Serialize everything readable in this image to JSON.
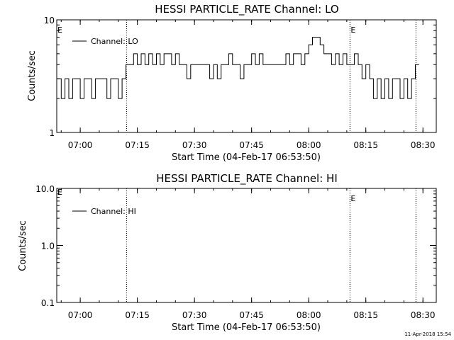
{
  "footer_date": "11-Apr-2018 15:54",
  "chart_data": [
    {
      "type": "line",
      "title": "HESSI PARTICLE_RATE Channel: LO",
      "xlabel": "Start Time (04-Feb-17 06:53:50)",
      "ylabel": "Counts/sec",
      "yscale": "log",
      "ylim": [
        1,
        10
      ],
      "ytick_labels": [
        "1",
        "10"
      ],
      "xlim": [
        "06:53:50",
        "08:33:30"
      ],
      "xtick_labels": [
        "07:00",
        "07:15",
        "07:30",
        "07:45",
        "08:00",
        "08:15",
        "08:30"
      ],
      "legend": {
        "entries": [
          "Channel: LO"
        ],
        "placement": "top-left"
      },
      "grid": false,
      "markers": [
        {
          "x": "07:12:10",
          "label": ""
        },
        {
          "x": "08:10:50",
          "label": "E"
        },
        {
          "x": "08:28:10",
          "label": ""
        }
      ],
      "edge_label": "E",
      "series": [
        {
          "name": "Channel: LO",
          "x": [
            "06:54:00",
            "06:55:00",
            "06:56:00",
            "06:57:00",
            "06:58:00",
            "06:59:00",
            "07:00:00",
            "07:01:00",
            "07:02:00",
            "07:03:00",
            "07:04:00",
            "07:05:00",
            "07:06:00",
            "07:07:00",
            "07:08:00",
            "07:09:00",
            "07:10:00",
            "07:11:00",
            "07:12:00",
            "07:13:00",
            "07:14:00",
            "07:15:00",
            "07:16:00",
            "07:17:00",
            "07:18:00",
            "07:19:00",
            "07:20:00",
            "07:21:00",
            "07:22:00",
            "07:23:00",
            "07:24:00",
            "07:25:00",
            "07:26:00",
            "07:27:00",
            "07:28:00",
            "07:29:00",
            "07:30:00",
            "07:31:00",
            "07:32:00",
            "07:33:00",
            "07:34:00",
            "07:35:00",
            "07:36:00",
            "07:37:00",
            "07:38:00",
            "07:39:00",
            "07:40:00",
            "07:41:00",
            "07:42:00",
            "07:43:00",
            "07:44:00",
            "07:45:00",
            "07:46:00",
            "07:47:00",
            "07:48:00",
            "07:49:00",
            "07:50:00",
            "07:51:00",
            "07:52:00",
            "07:53:00",
            "07:54:00",
            "07:55:00",
            "07:56:00",
            "07:57:00",
            "07:58:00",
            "07:59:00",
            "08:00:00",
            "08:01:00",
            "08:02:00",
            "08:03:00",
            "08:04:00",
            "08:05:00",
            "08:06:00",
            "08:07:00",
            "08:08:00",
            "08:09:00",
            "08:10:00",
            "08:11:00",
            "08:12:00",
            "08:13:00",
            "08:14:00",
            "08:15:00",
            "08:16:00",
            "08:17:00",
            "08:18:00",
            "08:19:00",
            "08:20:00",
            "08:21:00",
            "08:22:00",
            "08:23:00",
            "08:24:00",
            "08:25:00",
            "08:26:00",
            "08:27:00",
            "08:28:00"
          ],
          "values": [
            3,
            2,
            3,
            2,
            3,
            3,
            2,
            3,
            3,
            2,
            3,
            3,
            3,
            2,
            3,
            3,
            2,
            3,
            4,
            4,
            5,
            4,
            5,
            4,
            5,
            4,
            5,
            4,
            5,
            5,
            4,
            5,
            4,
            4,
            3,
            4,
            4,
            4,
            4,
            4,
            3,
            4,
            3,
            4,
            4,
            5,
            4,
            4,
            3,
            4,
            4,
            5,
            4,
            5,
            4,
            4,
            4,
            4,
            4,
            4,
            5,
            4,
            5,
            5,
            4,
            5,
            6,
            7,
            7,
            6,
            5,
            5,
            4,
            5,
            4,
            5,
            4,
            4,
            5,
            4,
            3,
            4,
            3,
            2,
            3,
            2,
            3,
            2,
            3,
            3,
            2,
            3,
            2,
            3,
            4
          ]
        }
      ]
    },
    {
      "type": "line",
      "title": "HESSI PARTICLE_RATE Channel: HI",
      "xlabel": "Start Time (04-Feb-17 06:53:50)",
      "ylabel": "Counts/sec",
      "yscale": "log",
      "ylim": [
        0.1,
        10
      ],
      "ytick_labels": [
        "0.1",
        "1.0",
        "10.0"
      ],
      "xlim": [
        "06:53:50",
        "08:33:30"
      ],
      "xtick_labels": [
        "07:00",
        "07:15",
        "07:30",
        "07:45",
        "08:00",
        "08:15",
        "08:30"
      ],
      "legend": {
        "entries": [
          "Channel: HI"
        ],
        "placement": "top-left"
      },
      "grid": false,
      "markers": [
        {
          "x": "07:12:10",
          "label": ""
        },
        {
          "x": "08:10:50",
          "label": "E"
        },
        {
          "x": "08:28:10",
          "label": ""
        }
      ],
      "edge_label": "E",
      "series": [
        {
          "name": "Channel: HI",
          "x": [],
          "values": []
        }
      ]
    }
  ]
}
